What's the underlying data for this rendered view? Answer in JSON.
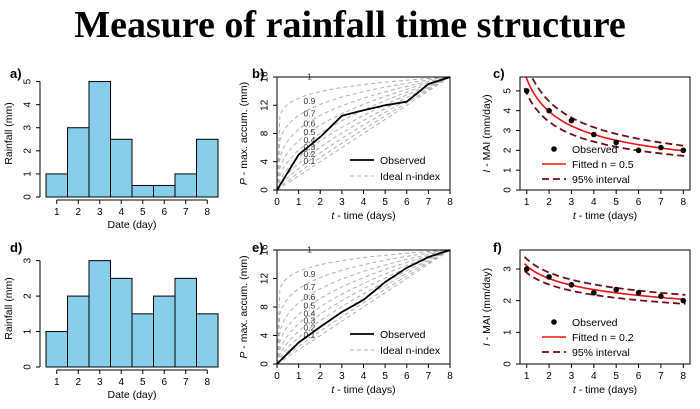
{
  "title": "Measure of rainfall time structure",
  "chart_data": [
    {
      "panel": "a)",
      "type": "bar",
      "categories": [
        "1",
        "2",
        "3",
        "4",
        "5",
        "6",
        "7",
        "8"
      ],
      "values": [
        1,
        3,
        5,
        2.5,
        0.5,
        0.5,
        1,
        2.5
      ],
      "xlabel": "Date (day)",
      "ylabel": "Rainfall (mm)",
      "yticks": [
        "0",
        "1",
        "2",
        "3",
        "4",
        "5"
      ],
      "ylim": [
        0,
        5.5
      ],
      "bar_color": "#87ceeb"
    },
    {
      "panel": "b)",
      "type": "line",
      "xlabel": "t - time (days)",
      "ylabel": "P - max. accum. (mm)",
      "xticks": [
        "0",
        "1",
        "2",
        "3",
        "4",
        "5",
        "6",
        "7",
        "8"
      ],
      "yticks": [
        "0",
        "4",
        "8",
        "12",
        "16"
      ],
      "xlim": [
        0,
        8
      ],
      "ylim": [
        0,
        16
      ],
      "total": 16,
      "n_index_labels": [
        "1",
        "0.9",
        "0.7",
        "0.6",
        "0.5",
        "0.4",
        "0.3",
        "0.2",
        "0.1"
      ],
      "n_values": [
        1,
        0.9,
        0.8,
        0.7,
        0.6,
        0.5,
        0.4,
        0.3,
        0.2,
        0.1
      ],
      "series": [
        {
          "name": "Observed",
          "x": [
            0,
            1,
            2,
            3,
            4,
            5,
            6,
            7,
            8
          ],
          "y": [
            0,
            5,
            7.5,
            10.5,
            11.3,
            12,
            12.5,
            15,
            16
          ]
        }
      ],
      "legend": {
        "observed": "Observed",
        "ideal": "Ideal n-index",
        "position": "bottom-right"
      }
    },
    {
      "panel": "c)",
      "type": "scatter",
      "xlabel": "t - time (days)",
      "ylabel": "I - MAI (mm/day)",
      "xticks": [
        "1",
        "2",
        "3",
        "4",
        "5",
        "6",
        "7",
        "8"
      ],
      "yticks": [
        "0",
        "1",
        "2",
        "3",
        "4",
        "5"
      ],
      "xlim": [
        0.7,
        8.3
      ],
      "ylim": [
        0,
        5.7
      ],
      "observed": {
        "x": [
          1,
          2,
          3,
          4,
          5,
          6,
          7,
          8
        ],
        "y": [
          5,
          4,
          3.5,
          2.8,
          2.4,
          2.0,
          2.14,
          2.0
        ]
      },
      "fit": {
        "a": 5.6,
        "n": 0.5
      },
      "interval": {
        "upper_factor": 1.13,
        "lower_factor": 0.87
      },
      "legend": {
        "observed": "Observed",
        "fitted": "Fitted n = 0.5",
        "interval": "95% interval",
        "position": "top-right"
      }
    },
    {
      "panel": "d)",
      "type": "bar",
      "categories": [
        "1",
        "2",
        "3",
        "4",
        "5",
        "6",
        "7",
        "8"
      ],
      "values": [
        1,
        2,
        3,
        2.5,
        1.5,
        2,
        2.5,
        1.5
      ],
      "xlabel": "Date (day)",
      "ylabel": "Rainfall (mm)",
      "yticks": [
        "0",
        "1",
        "2",
        "3"
      ],
      "ylim": [
        0,
        3.3
      ],
      "bar_color": "#87ceeb"
    },
    {
      "panel": "e)",
      "type": "line",
      "xlabel": "t - time (days)",
      "ylabel": "P - max. accum. (mm)",
      "xticks": [
        "0",
        "1",
        "2",
        "3",
        "4",
        "5",
        "6",
        "7",
        "8"
      ],
      "yticks": [
        "0",
        "4",
        "8",
        "12",
        "16"
      ],
      "xlim": [
        0,
        8
      ],
      "ylim": [
        0,
        16
      ],
      "total": 16,
      "n_index_labels": [
        "1",
        "0.9",
        "0.7",
        "0.6",
        "0.5",
        "0.4",
        "0.3",
        "0.2",
        "0.1"
      ],
      "n_values": [
        1,
        0.9,
        0.8,
        0.7,
        0.6,
        0.5,
        0.4,
        0.3,
        0.2,
        0.1
      ],
      "series": [
        {
          "name": "Observed",
          "x": [
            0,
            1,
            2,
            3,
            4,
            5,
            6,
            7,
            8
          ],
          "y": [
            0,
            3,
            5.2,
            7.3,
            9,
            11.5,
            13.5,
            15,
            16
          ]
        }
      ],
      "legend": {
        "observed": "Observed",
        "ideal": "Ideal n-index",
        "position": "bottom-right"
      }
    },
    {
      "panel": "f)",
      "type": "scatter",
      "xlabel": "t - time (days)",
      "ylabel": "I - MAI (mm/day)",
      "xticks": [
        "1",
        "2",
        "3",
        "4",
        "5",
        "6",
        "7",
        "8"
      ],
      "yticks": [
        "0",
        "1",
        "2",
        "3"
      ],
      "xlim": [
        0.7,
        8.3
      ],
      "ylim": [
        0,
        3.6
      ],
      "observed": {
        "x": [
          1,
          2,
          3,
          4,
          5,
          6,
          7,
          8
        ],
        "y": [
          3.0,
          2.75,
          2.5,
          2.25,
          2.35,
          2.25,
          2.14,
          2.0
        ]
      },
      "fit": {
        "a": 3.1,
        "n": 0.2
      },
      "interval": {
        "upper_factor": 1.07,
        "lower_factor": 0.93
      },
      "legend": {
        "observed": "Observed",
        "fitted": "Fitted n = 0.2",
        "interval": "95% interval",
        "position": "top-right"
      }
    }
  ]
}
